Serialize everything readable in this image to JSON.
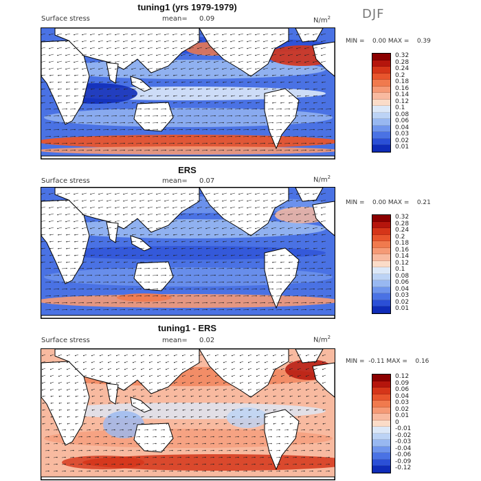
{
  "season": "DJF",
  "panels": [
    {
      "title": "tuning1 (yrs 1979-1979)",
      "variable": "Surface stress",
      "mean_label": "mean=",
      "mean_value": "0.09",
      "units": "N/m",
      "units_sup": "2",
      "minmax": "MIN =    0.00 MAX =    0.39",
      "min": 0.0,
      "max": 0.39,
      "colorbar_levels": [
        "0.32",
        "0.28",
        "0.24",
        "0.2",
        "0.18",
        "0.16",
        "0.14",
        "0.12",
        "0.1",
        "0.08",
        "0.06",
        "0.04",
        "0.03",
        "0.02",
        "0.01"
      ],
      "colorbar_colors": [
        "#8b0000",
        "#b5150c",
        "#d53519",
        "#e8552d",
        "#f07a4e",
        "#f59a76",
        "#f8baa0",
        "#fbdcc8",
        "#dce8f8",
        "#bcd3f5",
        "#98b8f1",
        "#6f95ec",
        "#4a72e4",
        "#2b4fd6",
        "#0f2cb8"
      ]
    },
    {
      "title": "ERS",
      "variable": "Surface stress",
      "mean_label": "mean=",
      "mean_value": "0.07",
      "units": "N/m",
      "units_sup": "2",
      "minmax": "MIN =    0.00 MAX =    0.21",
      "min": 0.0,
      "max": 0.21,
      "colorbar_levels": [
        "0.32",
        "0.28",
        "0.24",
        "0.2",
        "0.18",
        "0.16",
        "0.14",
        "0.12",
        "0.1",
        "0.08",
        "0.06",
        "0.04",
        "0.03",
        "0.02",
        "0.01"
      ],
      "colorbar_colors": [
        "#8b0000",
        "#b5150c",
        "#d53519",
        "#e8552d",
        "#f07a4e",
        "#f59a76",
        "#f8baa0",
        "#fbdcc8",
        "#dce8f8",
        "#bcd3f5",
        "#98b8f1",
        "#6f95ec",
        "#4a72e4",
        "#2b4fd6",
        "#0f2cb8"
      ]
    },
    {
      "title": "tuning1 - ERS",
      "variable": "Surface stress",
      "mean_label": "mean=",
      "mean_value": "0.02",
      "units": "N/m",
      "units_sup": "2",
      "minmax": "MIN =  -0.11 MAX =    0.16",
      "min": -0.11,
      "max": 0.16,
      "colorbar_levels": [
        "0.12",
        "0.09",
        "0.06",
        "0.04",
        "0.03",
        "0.02",
        "0.01",
        "0",
        "-0.01",
        "-0.02",
        "-0.03",
        "-0.04",
        "-0.06",
        "-0.09",
        "-0.12"
      ],
      "colorbar_colors": [
        "#8b0000",
        "#b5150c",
        "#d53519",
        "#e8552d",
        "#f07a4e",
        "#f59a76",
        "#f8baa0",
        "#fbdcc8",
        "#dce8f8",
        "#bcd3f5",
        "#98b8f1",
        "#6f95ec",
        "#4a72e4",
        "#2b4fd6",
        "#0f2cb8"
      ]
    }
  ],
  "colors": {
    "land": "#ffffff",
    "coast": "#000000",
    "arrow": "#222222"
  }
}
